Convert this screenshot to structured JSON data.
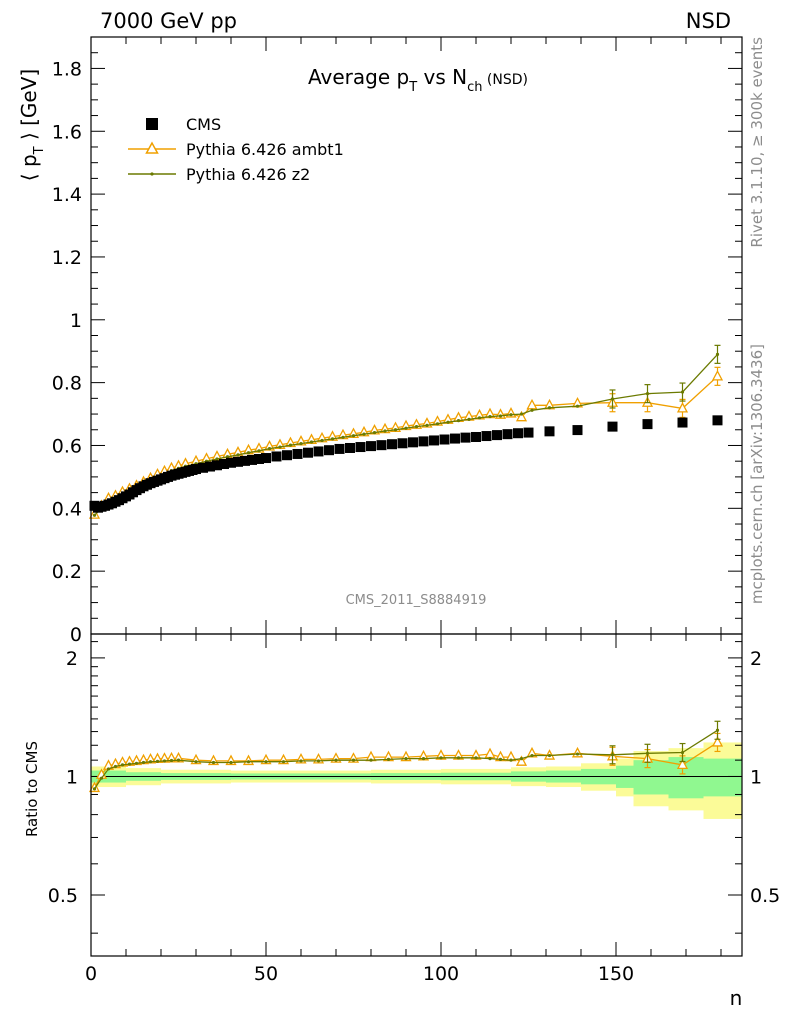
{
  "header": {
    "left": "7000 GeV pp",
    "right": "NSD"
  },
  "title": {
    "main": "Average p",
    "sub1": "T",
    "mid": " vs N",
    "sub2": "ch",
    "tail": " (NSD)"
  },
  "ylabel": {
    "main": "⟨ p",
    "sub": "T",
    "tail": " ⟩ [GeV]"
  },
  "ratio_ylabel": "Ratio to CMS",
  "xlabel": "n",
  "side_text": {
    "top": "Rivet 3.1.10, ≥ 300k events",
    "bottom": "mcplots.cern.ch [arXiv:1306.3436]"
  },
  "watermark": "CMS_2011_S8884919",
  "legend": [
    {
      "label": "CMS",
      "color": "#000000",
      "marker": "square"
    },
    {
      "label": "Pythia 6.426 ambt1",
      "color": "#f0a000",
      "marker": "triangle"
    },
    {
      "label": "Pythia 6.426 z2",
      "color": "#6b7a00",
      "marker": "dot"
    }
  ],
  "colors": {
    "cms": "#000000",
    "ambt1": "#f0a000",
    "z2": "#6b7a00",
    "band_inner": "#90f890",
    "band_outer": "#fbfb98"
  },
  "chart_data": {
    "type": "scatter",
    "x_range": [
      0,
      186
    ],
    "main_ylim": [
      0,
      1.9
    ],
    "ratio_ylim": [
      0.35,
      2.3
    ],
    "ratio_log_scale": true,
    "x_ticks": [
      "0",
      "50",
      "100",
      "150"
    ],
    "main_y_ticks": [
      "0",
      "0.2",
      "0.4",
      "0.6",
      "0.8",
      "1",
      "1.2",
      "1.4",
      "1.6",
      "1.8"
    ],
    "ratio_y_ticks": [
      "0.5",
      "1",
      "2"
    ],
    "series": [
      {
        "name": "CMS",
        "x": [
          1,
          2,
          3,
          4,
          5,
          6,
          7,
          8,
          9,
          10,
          11,
          12,
          13,
          14,
          15,
          16,
          17,
          18,
          19,
          20,
          21,
          22,
          23,
          24,
          25,
          26,
          27,
          28,
          29,
          30,
          32,
          34,
          36,
          38,
          40,
          42,
          44,
          46,
          48,
          50,
          53,
          56,
          59,
          62,
          65,
          68,
          71,
          74,
          77,
          80,
          83,
          86,
          89,
          92,
          95,
          98,
          101,
          104,
          107,
          110,
          113,
          116,
          119,
          122,
          125,
          131,
          139,
          149,
          159,
          169,
          179
        ],
        "y": [
          0.408,
          0.402,
          0.405,
          0.408,
          0.412,
          0.416,
          0.421,
          0.426,
          0.432,
          0.438,
          0.444,
          0.451,
          0.458,
          0.464,
          0.47,
          0.475,
          0.48,
          0.484,
          0.488,
          0.492,
          0.496,
          0.5,
          0.504,
          0.507,
          0.51,
          0.513,
          0.516,
          0.519,
          0.522,
          0.525,
          0.529,
          0.533,
          0.537,
          0.541,
          0.545,
          0.548,
          0.551,
          0.554,
          0.557,
          0.56,
          0.565,
          0.569,
          0.573,
          0.577,
          0.581,
          0.585,
          0.589,
          0.592,
          0.595,
          0.598,
          0.601,
          0.604,
          0.607,
          0.61,
          0.613,
          0.616,
          0.619,
          0.622,
          0.625,
          0.627,
          0.63,
          0.633,
          0.636,
          0.639,
          0.641,
          0.645,
          0.649,
          0.66,
          0.668,
          0.673,
          0.68
        ]
      },
      {
        "name": "Pythia 6.426 ambt1",
        "x": [
          1,
          3,
          5,
          7,
          9,
          11,
          13,
          15,
          17,
          19,
          21,
          23,
          25,
          27,
          30,
          33,
          36,
          39,
          42,
          45,
          48,
          51,
          54,
          57,
          60,
          63,
          66,
          69,
          72,
          75,
          78,
          81,
          84,
          87,
          90,
          93,
          96,
          99,
          102,
          105,
          108,
          111,
          114,
          117,
          120,
          123,
          126,
          131,
          139,
          149,
          159,
          169,
          179
        ],
        "y": [
          0.38,
          0.408,
          0.432,
          0.44,
          0.452,
          0.462,
          0.472,
          0.484,
          0.496,
          0.508,
          0.518,
          0.528,
          0.535,
          0.542,
          0.55,
          0.558,
          0.565,
          0.572,
          0.578,
          0.585,
          0.59,
          0.597,
          0.602,
          0.608,
          0.613,
          0.618,
          0.623,
          0.628,
          0.633,
          0.637,
          0.642,
          0.648,
          0.652,
          0.656,
          0.662,
          0.666,
          0.67,
          0.676,
          0.682,
          0.688,
          0.692,
          0.696,
          0.7,
          0.698,
          0.702,
          0.69,
          0.728,
          0.728,
          0.734,
          0.736,
          0.736,
          0.718,
          0.82
        ]
      },
      {
        "name": "Pythia 6.426 z2",
        "x": [
          1,
          3,
          5,
          7,
          9,
          11,
          13,
          15,
          17,
          19,
          21,
          23,
          25,
          27,
          30,
          33,
          36,
          39,
          42,
          45,
          48,
          51,
          54,
          57,
          60,
          63,
          66,
          69,
          72,
          75,
          78,
          81,
          84,
          87,
          90,
          93,
          96,
          99,
          102,
          105,
          108,
          111,
          114,
          117,
          120,
          123,
          126,
          131,
          139,
          149,
          159,
          169,
          179
        ],
        "y": [
          0.378,
          0.4,
          0.425,
          0.434,
          0.444,
          0.454,
          0.464,
          0.476,
          0.488,
          0.5,
          0.51,
          0.52,
          0.527,
          0.534,
          0.542,
          0.55,
          0.557,
          0.564,
          0.57,
          0.577,
          0.583,
          0.59,
          0.595,
          0.601,
          0.606,
          0.611,
          0.616,
          0.621,
          0.626,
          0.631,
          0.636,
          0.641,
          0.646,
          0.65,
          0.655,
          0.66,
          0.664,
          0.669,
          0.674,
          0.679,
          0.683,
          0.688,
          0.692,
          0.694,
          0.698,
          0.7,
          0.712,
          0.72,
          0.725,
          0.748,
          0.765,
          0.77,
          0.89
        ]
      }
    ],
    "ratio_series": [
      {
        "name": "Pythia 6.426 ambt1",
        "x": [
          1,
          3,
          5,
          7,
          9,
          11,
          13,
          15,
          17,
          19,
          21,
          23,
          25,
          30,
          35,
          40,
          45,
          50,
          55,
          60,
          65,
          70,
          75,
          80,
          85,
          90,
          95,
          100,
          105,
          110,
          114,
          117,
          120,
          123,
          126,
          131,
          139,
          149,
          159,
          169,
          179
        ],
        "y": [
          0.935,
          1.01,
          1.065,
          1.075,
          1.085,
          1.09,
          1.095,
          1.1,
          1.105,
          1.108,
          1.11,
          1.112,
          1.112,
          1.1,
          1.095,
          1.095,
          1.095,
          1.1,
          1.1,
          1.105,
          1.105,
          1.11,
          1.11,
          1.12,
          1.12,
          1.12,
          1.125,
          1.13,
          1.13,
          1.13,
          1.14,
          1.12,
          1.12,
          1.09,
          1.145,
          1.13,
          1.145,
          1.125,
          1.11,
          1.07,
          1.22
        ]
      },
      {
        "name": "Pythia 6.426 z2",
        "x": [
          1,
          3,
          5,
          7,
          9,
          11,
          13,
          15,
          17,
          19,
          21,
          23,
          25,
          30,
          35,
          40,
          45,
          50,
          55,
          60,
          65,
          70,
          75,
          80,
          85,
          90,
          95,
          100,
          105,
          110,
          114,
          117,
          120,
          123,
          126,
          131,
          139,
          149,
          159,
          169,
          179
        ],
        "y": [
          0.93,
          0.99,
          1.045,
          1.06,
          1.07,
          1.075,
          1.08,
          1.085,
          1.09,
          1.092,
          1.095,
          1.098,
          1.1,
          1.09,
          1.085,
          1.085,
          1.09,
          1.09,
          1.09,
          1.095,
          1.095,
          1.1,
          1.1,
          1.1,
          1.105,
          1.11,
          1.11,
          1.115,
          1.115,
          1.115,
          1.11,
          1.105,
          1.1,
          1.11,
          1.13,
          1.13,
          1.14,
          1.135,
          1.145,
          1.15,
          1.31
        ]
      }
    ],
    "uncertainty_bands": {
      "x_edges": [
        0,
        10,
        20,
        40,
        60,
        80,
        100,
        120,
        130,
        140,
        150,
        155,
        165,
        175,
        186
      ],
      "inner": [
        0.035,
        0.025,
        0.02,
        0.018,
        0.018,
        0.02,
        0.022,
        0.03,
        0.035,
        0.045,
        0.065,
        0.1,
        0.12,
        0.11,
        0.1
      ],
      "outer": [
        0.06,
        0.05,
        0.04,
        0.035,
        0.035,
        0.04,
        0.045,
        0.055,
        0.06,
        0.08,
        0.11,
        0.16,
        0.18,
        0.22,
        0.22
      ]
    }
  }
}
